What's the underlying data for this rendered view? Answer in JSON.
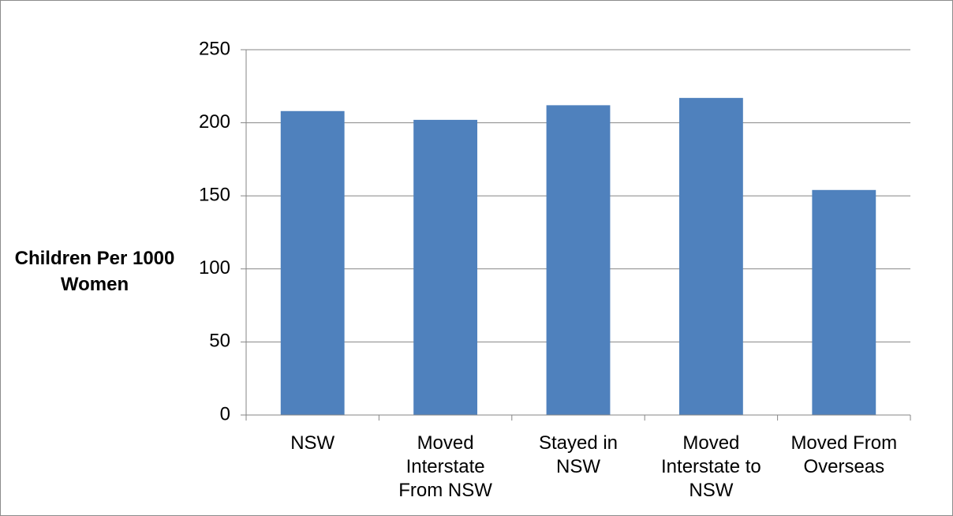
{
  "chart_data": {
    "type": "bar",
    "y_label": "Children Per 1000 Women",
    "categories": [
      "NSW",
      "Moved Interstate From NSW",
      "Stayed in NSW",
      "Moved Interstate to NSW",
      "Moved From Overseas"
    ],
    "values": [
      208,
      202,
      212,
      217,
      154
    ],
    "color": "#4f81bd",
    "ylim": [
      0,
      250
    ],
    "yticks": [
      0,
      50,
      100,
      150,
      200,
      250
    ],
    "grid": true
  }
}
